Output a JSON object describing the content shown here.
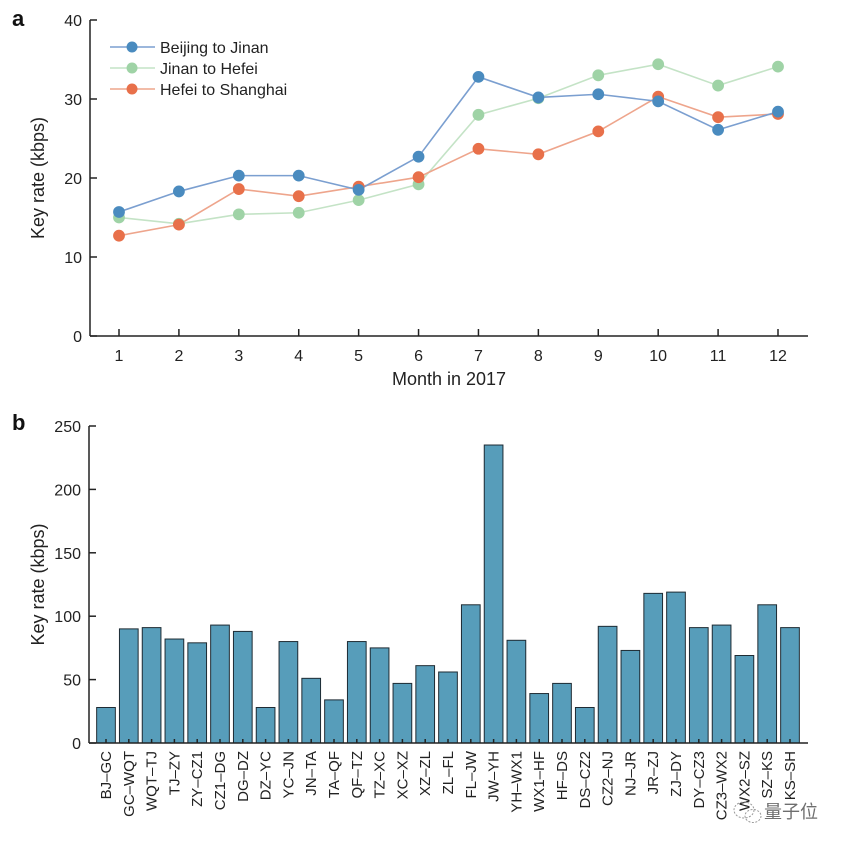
{
  "chart_data": [
    {
      "panel": "a",
      "type": "line",
      "title": "",
      "xlabel": "Month in 2017",
      "ylabel": "Key rate (kbps)",
      "x": [
        1,
        2,
        3,
        4,
        5,
        6,
        7,
        8,
        9,
        10,
        11,
        12
      ],
      "xticks": [
        "1",
        "2",
        "3",
        "4",
        "5",
        "6",
        "7",
        "8",
        "9",
        "10",
        "11",
        "12"
      ],
      "xlim": [
        0.5,
        12.5
      ],
      "ylim": [
        0,
        40
      ],
      "yticks": [
        "0",
        "10",
        "20",
        "30",
        "40"
      ],
      "yticks_values": [
        0,
        10,
        20,
        30,
        40
      ],
      "grid": false,
      "legend_position": "top-left",
      "series": [
        {
          "name": "Beijing to Jinan",
          "color": "#4a8bbf",
          "line_color": "#7b9fd0",
          "values": [
            15.7,
            18.3,
            20.3,
            20.3,
            18.5,
            22.7,
            32.8,
            30.2,
            30.6,
            29.7,
            26.1,
            28.4
          ]
        },
        {
          "name": "Jinan to Hefei",
          "color": "#9fd3a6",
          "line_color": "#c4e3c6",
          "values": [
            15.0,
            14.2,
            15.4,
            15.6,
            17.2,
            19.2,
            28.0,
            30.1,
            33.0,
            34.4,
            31.7,
            34.1
          ]
        },
        {
          "name": "Hefei to Shanghai",
          "color": "#e8704a",
          "line_color": "#eea58c",
          "values": [
            12.7,
            14.1,
            18.6,
            17.7,
            18.9,
            20.1,
            23.7,
            23.0,
            25.9,
            30.3,
            27.7,
            28.1
          ]
        }
      ]
    },
    {
      "panel": "b",
      "type": "bar",
      "title": "",
      "xlabel": "",
      "ylabel": "Key rate (kbps)",
      "ylim": [
        0,
        250
      ],
      "yticks": [
        "0",
        "50",
        "100",
        "150",
        "200",
        "250"
      ],
      "yticks_values": [
        0,
        50,
        100,
        150,
        200,
        250
      ],
      "grid": false,
      "bar_color": "#579dba",
      "bar_edge_color": "#1e2b33",
      "categories": [
        "BJ–GC",
        "GC–WQT",
        "WQT–TJ",
        "TJ–ZY",
        "ZY–CZ1",
        "CZ1–DG",
        "DG–DZ",
        "DZ–YC",
        "YC–JN",
        "JN–TA",
        "TA–QF",
        "QF–TZ",
        "TZ–XC",
        "XC–XZ",
        "XZ–ZL",
        "ZL–FL",
        "FL–JW",
        "JW–YH",
        "YH–WX1",
        "WX1–HF",
        "HF–DS",
        "DS–CZ2",
        "CZ2–NJ",
        "NJ–JR",
        "JR–ZJ",
        "ZJ–DY",
        "DY–CZ3",
        "CZ3–WX2",
        "WX2–SZ",
        "SZ–KS",
        "KS–SH"
      ],
      "values": [
        28,
        90,
        91,
        82,
        79,
        93,
        88,
        28,
        80,
        51,
        34,
        80,
        75,
        47,
        61,
        56,
        109,
        235,
        81,
        39,
        47,
        28,
        92,
        73,
        118,
        119,
        91,
        93,
        69,
        109,
        91
      ]
    }
  ],
  "panels": {
    "a_label": "a",
    "b_label": "b"
  },
  "watermark": {
    "text": "量子位",
    "icon": "wechat-icon"
  }
}
